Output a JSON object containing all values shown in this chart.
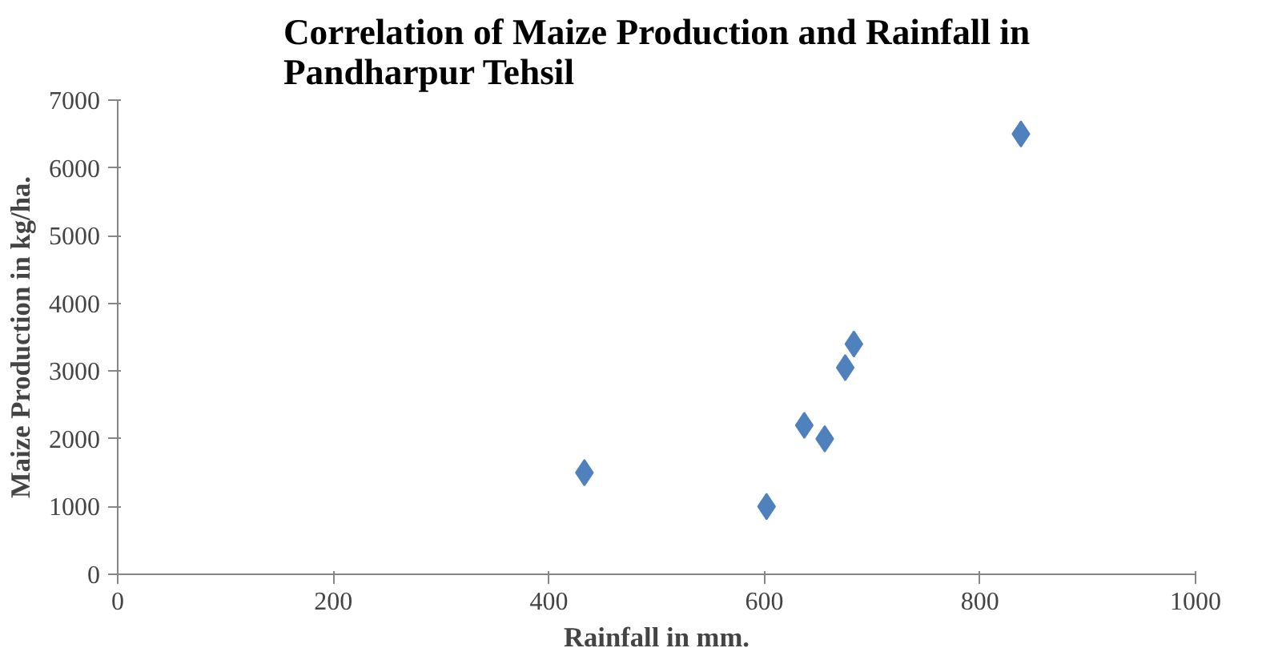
{
  "chart_data": {
    "type": "scatter",
    "title": "Correlation of Maize Production and Rainfall in Pandharpur Tehsil",
    "xlabel": "Rainfall in mm.",
    "ylabel": "Maize Production in kg/ha.",
    "x": [
      433,
      602,
      637,
      656,
      675,
      683,
      838
    ],
    "series": [
      {
        "color": "#4f81bd",
        "values": [
          1500,
          1000,
          2200,
          2000,
          3050,
          3400,
          6500
        ]
      }
    ],
    "xlim": [
      0,
      1000
    ],
    "xticks": [
      0,
      200,
      400,
      600,
      800,
      1000
    ],
    "ylim": [
      0,
      7000
    ],
    "yticks": [
      0,
      1000,
      2000,
      3000,
      4000,
      5000,
      6000,
      7000
    ],
    "marker": "diamond",
    "grid": false
  }
}
